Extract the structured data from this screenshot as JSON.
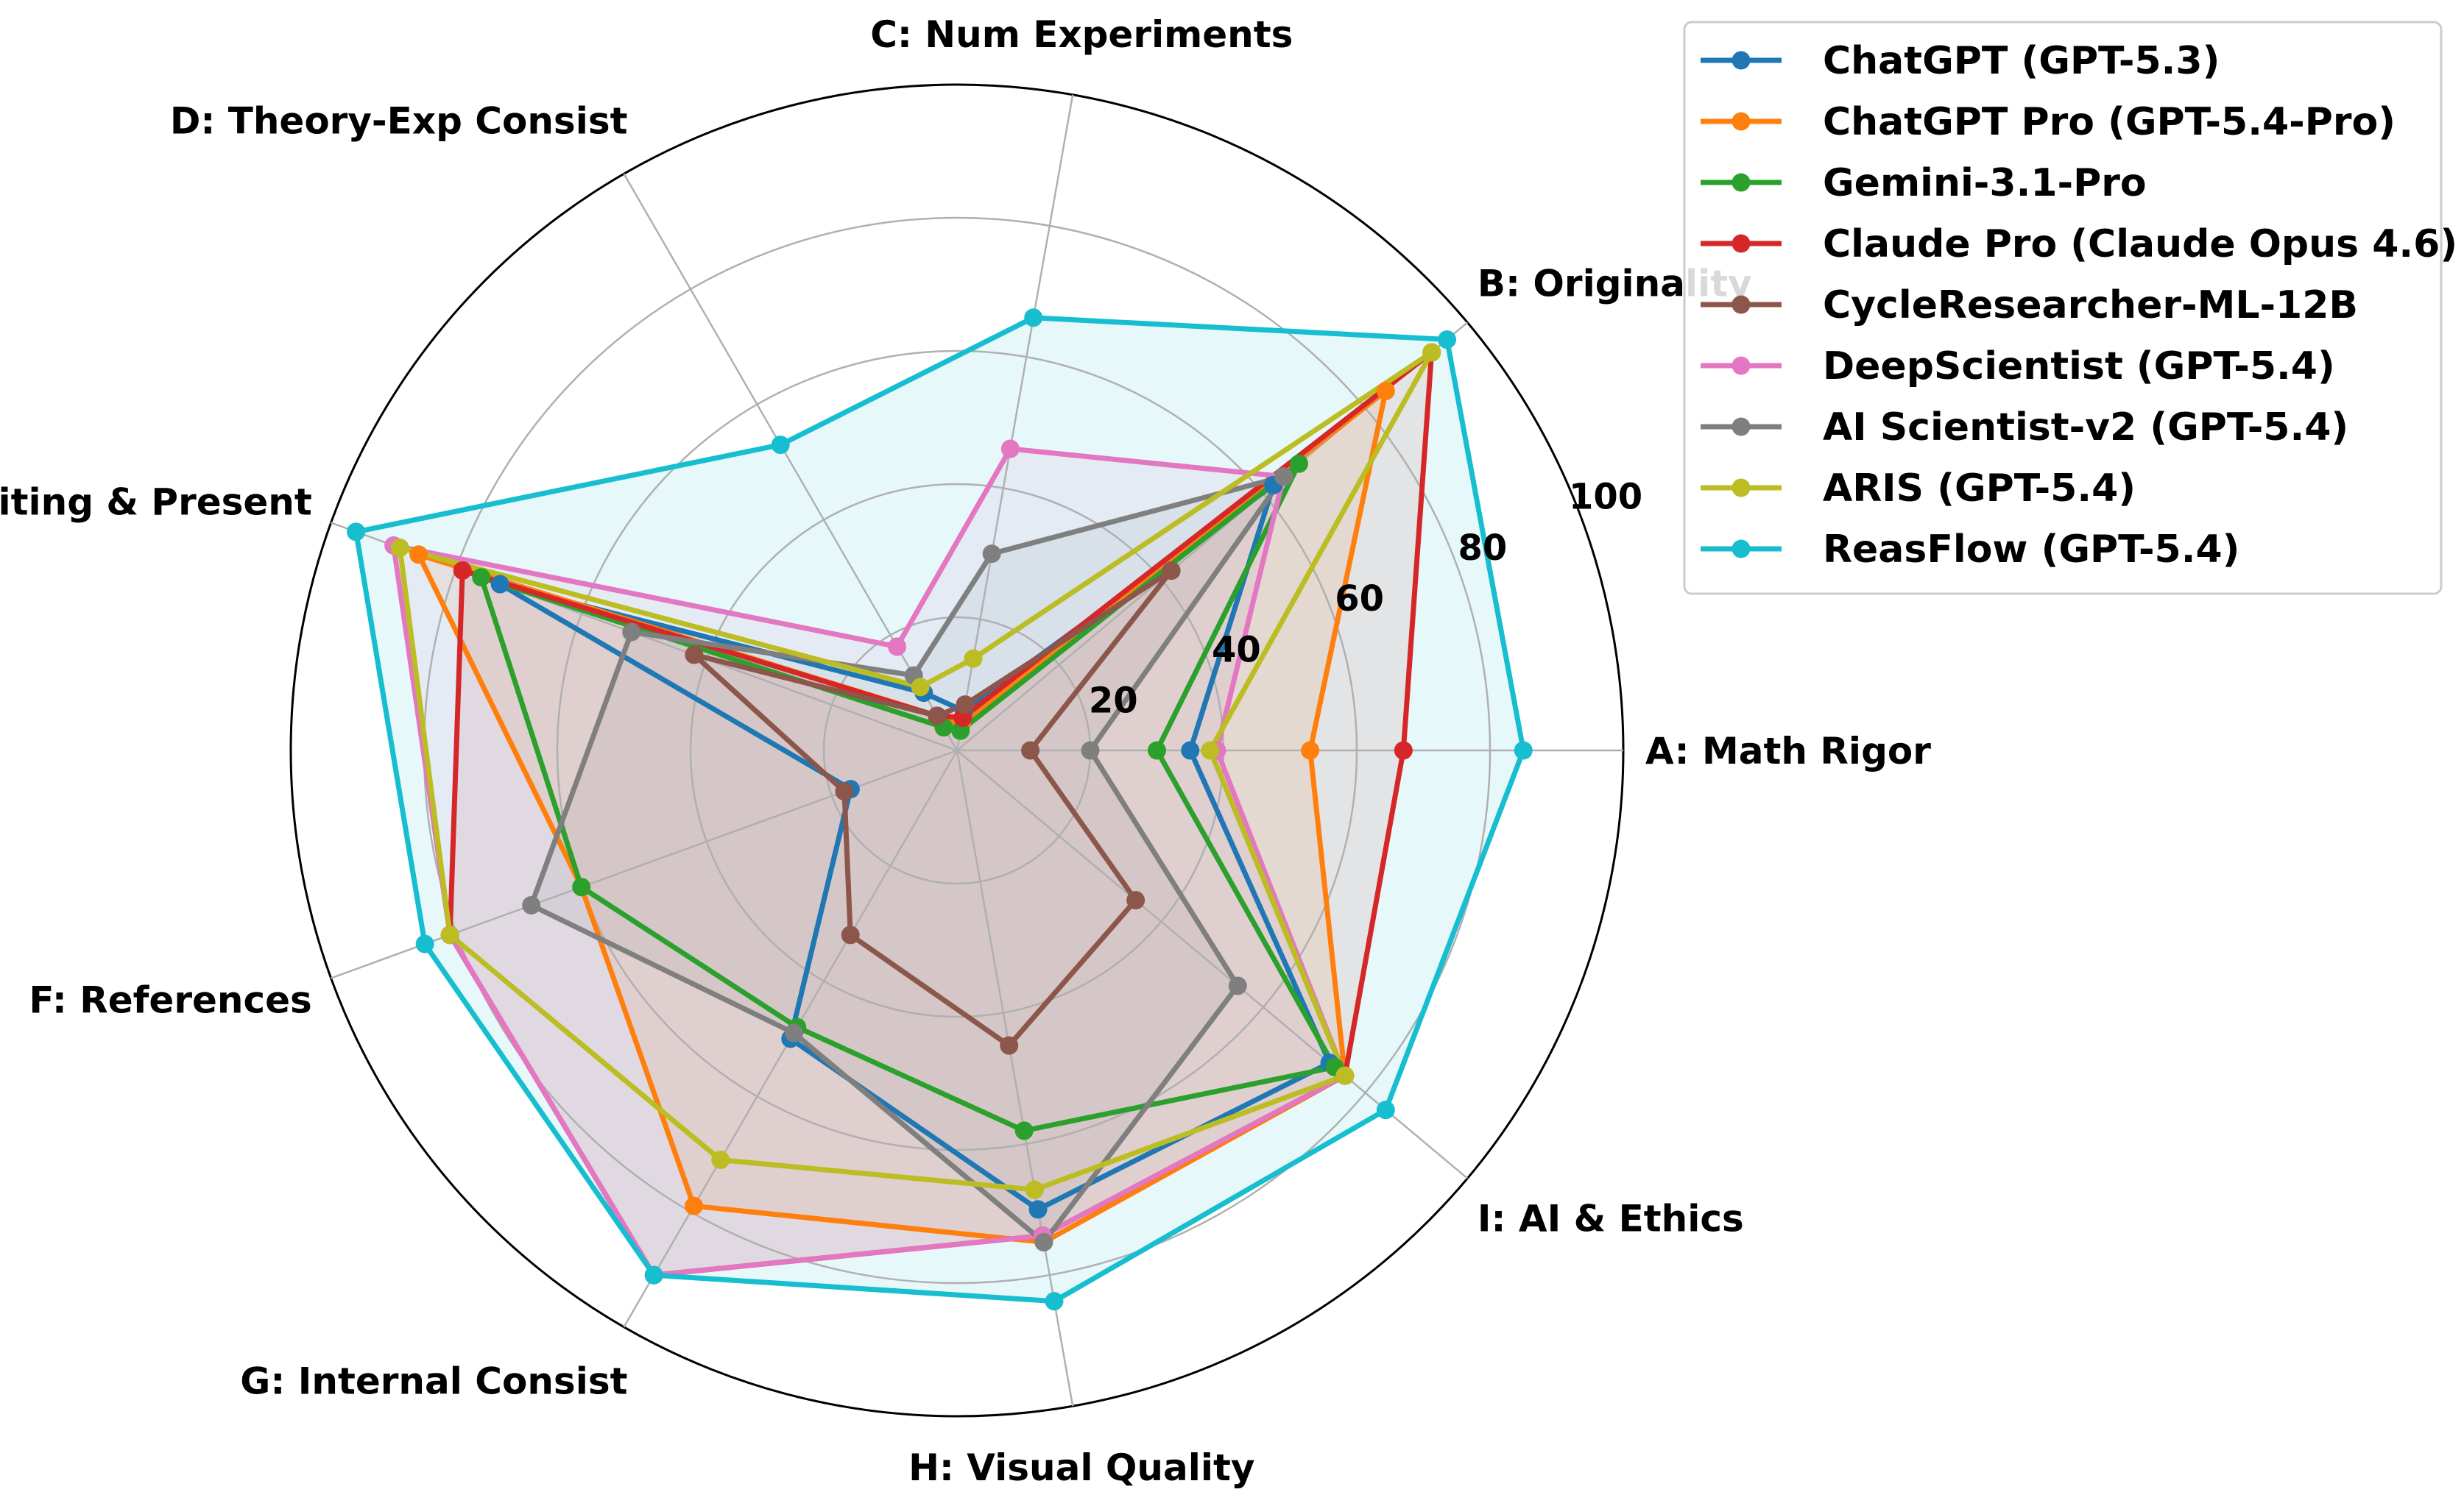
{
  "chart_data": {
    "type": "radar",
    "axes": [
      "A: Math Rigor",
      "B: Originality",
      "C: Num Experiments",
      "D: Theory-Exp Consist",
      "E: Writing & Present",
      "F: References",
      "G: Internal Consist",
      "H: Visual Quality",
      "I: AI & Ethics"
    ],
    "rlim": [
      0,
      100
    ],
    "rticks": [
      20,
      40,
      60,
      80,
      100
    ],
    "rtick_labels": [
      "20",
      "40",
      "60",
      "80",
      "100"
    ],
    "grid": true,
    "legend_position": "outside right, top",
    "series": [
      {
        "name": "ChatGPT (GPT-5.3)",
        "color": "#1f77b4",
        "fill": false,
        "values": [
          35,
          62,
          6,
          10,
          73,
          17,
          50,
          70,
          73
        ]
      },
      {
        "name": "ChatGPT Pro (GPT-5.4-Pro)",
        "color": "#ff7f0e",
        "fill": true,
        "values": [
          53,
          84,
          4,
          6,
          86,
          60,
          79,
          75,
          76
        ]
      },
      {
        "name": "Gemini-3.1-Pro",
        "color": "#2ca02c",
        "fill": false,
        "values": [
          30,
          67,
          3,
          4,
          76,
          60,
          48,
          58,
          74
        ]
      },
      {
        "name": "Claude Pro (Claude Opus 4.6)",
        "color": "#d62728",
        "fill": true,
        "values": [
          67,
          93,
          5,
          6,
          79,
          81,
          91,
          74,
          76
        ]
      },
      {
        "name": "CycleResearcher-ML-12B",
        "color": "#8c564b",
        "fill": false,
        "values": [
          11,
          42,
          7,
          6,
          42,
          18,
          32,
          45,
          35
        ]
      },
      {
        "name": "DeepScientist (GPT-5.4)",
        "color": "#e377c2",
        "fill": true,
        "values": [
          39,
          64,
          46,
          18,
          90,
          81,
          91,
          74,
          76
        ]
      },
      {
        "name": "AI Scientist-v2 (GPT-5.4)",
        "color": "#7f7f7f",
        "fill": true,
        "values": [
          20,
          64,
          30,
          13,
          52,
          68,
          49,
          75,
          55
        ]
      },
      {
        "name": "ARIS (GPT-5.4)",
        "color": "#bcbd22",
        "fill": false,
        "values": [
          38,
          93,
          14,
          11,
          89,
          81,
          71,
          67,
          76
        ]
      },
      {
        "name": "ReasFlow (GPT-5.4)",
        "color": "#17becf",
        "fill": true,
        "values": [
          85,
          96,
          66,
          53,
          96,
          85,
          91,
          84,
          84
        ]
      }
    ]
  }
}
